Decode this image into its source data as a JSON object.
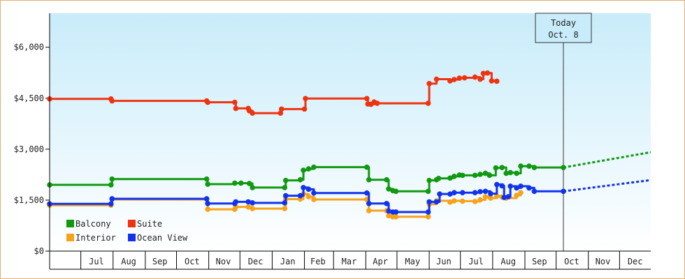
{
  "chart_data": {
    "type": "line",
    "title": "",
    "xlabel": "",
    "ylabel": "",
    "ylim": [
      0,
      7000
    ],
    "y_ticks": [
      {
        "value": 0,
        "label": "$0"
      },
      {
        "value": 1500,
        "label": "$1,500"
      },
      {
        "value": 3000,
        "label": "$3,000"
      },
      {
        "value": 4500,
        "label": "$4,500"
      },
      {
        "value": 6000,
        "label": "$6,000"
      }
    ],
    "x_axis": {
      "start": "2014-06-01",
      "end": "2015-12-31",
      "month_labels": [
        {
          "label": "Jul",
          "mid": "2014-07-16"
        },
        {
          "label": "Aug",
          "mid": "2014-08-16"
        },
        {
          "label": "Sep",
          "mid": "2014-09-15"
        },
        {
          "label": "Oct",
          "mid": "2014-10-16"
        },
        {
          "label": "Nov",
          "mid": "2014-11-15"
        },
        {
          "label": "Dec",
          "mid": "2014-12-16"
        },
        {
          "label": "Jan",
          "mid": "2015-01-16"
        },
        {
          "label": "Feb",
          "mid": "2015-02-14"
        },
        {
          "label": "Mar",
          "mid": "2015-03-16"
        },
        {
          "label": "Apr",
          "mid": "2015-04-15"
        },
        {
          "label": "May",
          "mid": "2015-05-16"
        },
        {
          "label": "Jun",
          "mid": "2015-06-15"
        },
        {
          "label": "Jul",
          "mid": "2015-07-16"
        },
        {
          "label": "Aug",
          "mid": "2015-08-16"
        },
        {
          "label": "Sep",
          "mid": "2015-09-15"
        },
        {
          "label": "Oct",
          "mid": "2015-10-16"
        },
        {
          "label": "Nov",
          "mid": "2015-11-15"
        },
        {
          "label": "Dec",
          "mid": "2015-12-16"
        }
      ]
    },
    "today": {
      "date": "2015-10-08",
      "label_line1": "Today",
      "label_line2": "Oct. 8"
    },
    "legend": [
      "Balcony",
      "Suite",
      "Interior",
      "Ocean View"
    ],
    "legend_placement": "bottom-left",
    "grid": false,
    "background": {
      "top": "#c8ecfa",
      "bottom": "#ffffff"
    },
    "series": [
      {
        "name": "Balcony",
        "color": "#119911",
        "points": [
          [
            "2014-06-01",
            1950
          ],
          [
            "2014-07-30",
            1950
          ],
          [
            "2014-07-31",
            2120
          ],
          [
            "2014-10-30",
            2120
          ],
          [
            "2014-10-31",
            1970
          ],
          [
            "2014-11-26",
            2000
          ],
          [
            "2014-12-02",
            2000
          ],
          [
            "2014-12-10",
            1990
          ],
          [
            "2014-12-13",
            1870
          ],
          [
            "2015-01-13",
            1870
          ],
          [
            "2015-01-14",
            2080
          ],
          [
            "2015-01-28",
            2100
          ],
          [
            "2015-01-31",
            2380
          ],
          [
            "2015-02-05",
            2420
          ],
          [
            "2015-02-10",
            2470
          ],
          [
            "2015-04-02",
            2470
          ],
          [
            "2015-04-04",
            2100
          ],
          [
            "2015-04-21",
            2100
          ],
          [
            "2015-04-23",
            1830
          ],
          [
            "2015-04-27",
            1780
          ],
          [
            "2015-04-30",
            1760
          ],
          [
            "2015-05-31",
            1760
          ],
          [
            "2015-06-01",
            2080
          ],
          [
            "2015-06-08",
            2100
          ],
          [
            "2015-06-10",
            2140
          ],
          [
            "2015-06-21",
            2150
          ],
          [
            "2015-06-25",
            2200
          ],
          [
            "2015-06-30",
            2240
          ],
          [
            "2015-07-03",
            2230
          ],
          [
            "2015-07-15",
            2230
          ],
          [
            "2015-07-20",
            2260
          ],
          [
            "2015-07-25",
            2290
          ],
          [
            "2015-07-29",
            2230
          ],
          [
            "2015-08-04",
            2450
          ],
          [
            "2015-08-10",
            2460
          ],
          [
            "2015-08-14",
            2290
          ],
          [
            "2015-08-18",
            2310
          ],
          [
            "2015-08-24",
            2290
          ],
          [
            "2015-08-28",
            2500
          ],
          [
            "2015-09-05",
            2500
          ],
          [
            "2015-09-10",
            2460
          ],
          [
            "2015-10-08",
            2460
          ]
        ],
        "projection": [
          [
            "2015-10-08",
            2460
          ],
          [
            "2015-12-31",
            2910
          ]
        ]
      },
      {
        "name": "Suite",
        "color": "#ee3311",
        "points": [
          [
            "2014-06-01",
            4480
          ],
          [
            "2014-07-30",
            4480
          ],
          [
            "2014-07-31",
            4420
          ],
          [
            "2014-10-30",
            4420
          ],
          [
            "2014-10-31",
            4380
          ],
          [
            "2014-11-26",
            4380
          ],
          [
            "2014-11-27",
            4200
          ],
          [
            "2014-12-09",
            4200
          ],
          [
            "2014-12-10",
            4130
          ],
          [
            "2014-12-13",
            4060
          ],
          [
            "2015-01-09",
            4060
          ],
          [
            "2015-01-10",
            4180
          ],
          [
            "2015-02-01",
            4180
          ],
          [
            "2015-02-02",
            4490
          ],
          [
            "2015-04-02",
            4490
          ],
          [
            "2015-04-03",
            4330
          ],
          [
            "2015-04-06",
            4320
          ],
          [
            "2015-04-09",
            4390
          ],
          [
            "2015-04-12",
            4350
          ],
          [
            "2015-05-31",
            4350
          ],
          [
            "2015-06-01",
            4930
          ],
          [
            "2015-06-08",
            5060
          ],
          [
            "2015-06-21",
            5010
          ],
          [
            "2015-06-25",
            5050
          ],
          [
            "2015-06-30",
            5090
          ],
          [
            "2015-07-05",
            5100
          ],
          [
            "2015-07-15",
            5120
          ],
          [
            "2015-07-20",
            5060
          ],
          [
            "2015-07-23",
            5230
          ],
          [
            "2015-07-27",
            5240
          ],
          [
            "2015-07-31",
            5010
          ],
          [
            "2015-08-05",
            5000
          ]
        ]
      },
      {
        "name": "Interior",
        "color": "#f7a21b",
        "points": [
          [
            "2014-06-01",
            1350
          ],
          [
            "2014-07-30",
            1350
          ],
          [
            "2014-07-31",
            1520
          ],
          [
            "2014-10-30",
            1520
          ],
          [
            "2014-10-31",
            1230
          ],
          [
            "2014-11-26",
            1230
          ],
          [
            "2014-11-27",
            1300
          ],
          [
            "2014-12-09",
            1300
          ],
          [
            "2014-12-13",
            1250
          ],
          [
            "2015-01-13",
            1250
          ],
          [
            "2015-01-14",
            1530
          ],
          [
            "2015-01-28",
            1530
          ],
          [
            "2015-01-31",
            1680
          ],
          [
            "2015-02-05",
            1600
          ],
          [
            "2015-02-10",
            1520
          ],
          [
            "2015-04-02",
            1520
          ],
          [
            "2015-04-04",
            1190
          ],
          [
            "2015-04-21",
            1190
          ],
          [
            "2015-04-23",
            1040
          ],
          [
            "2015-04-27",
            1010
          ],
          [
            "2015-04-30",
            1010
          ],
          [
            "2015-05-31",
            1010
          ],
          [
            "2015-06-01",
            1380
          ],
          [
            "2015-06-08",
            1480
          ],
          [
            "2015-06-21",
            1440
          ],
          [
            "2015-06-25",
            1480
          ],
          [
            "2015-07-03",
            1470
          ],
          [
            "2015-07-15",
            1460
          ],
          [
            "2015-07-20",
            1510
          ],
          [
            "2015-07-25",
            1600
          ],
          [
            "2015-07-30",
            1560
          ],
          [
            "2015-08-05",
            1620
          ],
          [
            "2015-08-10",
            1590
          ],
          [
            "2015-08-14",
            1560
          ],
          [
            "2015-08-24",
            1640
          ],
          [
            "2015-08-28",
            1720
          ]
        ]
      },
      {
        "name": "Ocean View",
        "color": "#1133ee",
        "points": [
          [
            "2014-06-01",
            1390
          ],
          [
            "2014-07-30",
            1390
          ],
          [
            "2014-07-31",
            1540
          ],
          [
            "2014-10-30",
            1540
          ],
          [
            "2014-10-31",
            1400
          ],
          [
            "2014-11-26",
            1400
          ],
          [
            "2014-11-27",
            1450
          ],
          [
            "2014-12-09",
            1450
          ],
          [
            "2014-12-13",
            1420
          ],
          [
            "2015-01-13",
            1420
          ],
          [
            "2015-01-14",
            1630
          ],
          [
            "2015-01-28",
            1630
          ],
          [
            "2015-01-31",
            1870
          ],
          [
            "2015-02-05",
            1820
          ],
          [
            "2015-02-10",
            1710
          ],
          [
            "2015-04-02",
            1710
          ],
          [
            "2015-04-04",
            1400
          ],
          [
            "2015-04-21",
            1400
          ],
          [
            "2015-04-23",
            1180
          ],
          [
            "2015-04-27",
            1150
          ],
          [
            "2015-04-30",
            1150
          ],
          [
            "2015-05-31",
            1150
          ],
          [
            "2015-06-01",
            1450
          ],
          [
            "2015-06-08",
            1450
          ],
          [
            "2015-06-11",
            1680
          ],
          [
            "2015-06-21",
            1680
          ],
          [
            "2015-06-25",
            1720
          ],
          [
            "2015-07-03",
            1720
          ],
          [
            "2015-07-15",
            1720
          ],
          [
            "2015-07-20",
            1750
          ],
          [
            "2015-07-25",
            1760
          ],
          [
            "2015-07-30",
            1690
          ],
          [
            "2015-08-05",
            1960
          ],
          [
            "2015-08-10",
            1920
          ],
          [
            "2015-08-12",
            1580
          ],
          [
            "2015-08-16",
            1600
          ],
          [
            "2015-08-18",
            1910
          ],
          [
            "2015-08-24",
            1860
          ],
          [
            "2015-08-28",
            1910
          ],
          [
            "2015-09-05",
            1860
          ],
          [
            "2015-09-10",
            1760
          ],
          [
            "2015-10-08",
            1760
          ]
        ],
        "projection": [
          [
            "2015-10-08",
            1760
          ],
          [
            "2015-12-31",
            2090
          ]
        ]
      }
    ]
  }
}
